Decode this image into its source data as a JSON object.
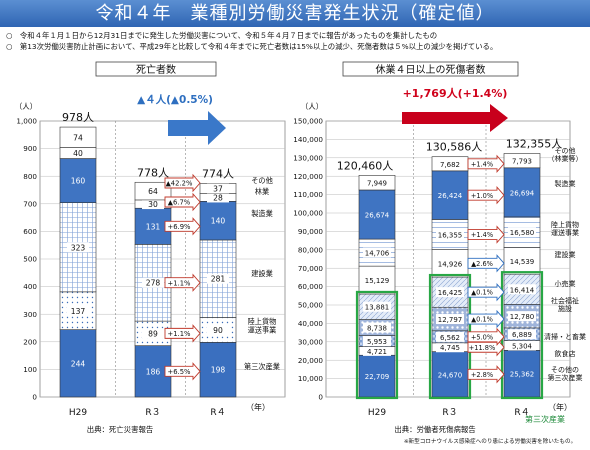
{
  "title": "令和４年　業種別労働災害発生状況（確定値）",
  "notes": [
    "○　令和４年１月１日から12月31日までに発生した労働災害について、令和５年４月７日までに報告があったものを集計したもの",
    "○　第13次労働災害防止計画において、平成29年と比較して令和４年までに死亡者数は15%以上の減少、死傷者数は５%以上の減少を掲げている。"
  ],
  "year_unit": "（年）",
  "chart_data": [
    {
      "type": "bar",
      "stacked": true,
      "title": "死亡者数",
      "ylabel": "（人）",
      "ylim": [
        0,
        1000
      ],
      "yticks": [
        "0",
        "100",
        "200",
        "300",
        "400",
        "500",
        "600",
        "700",
        "800",
        "900",
        "1,000"
      ],
      "categories": [
        "H29",
        "R３",
        "R４"
      ],
      "totals": [
        "978人",
        "778人",
        "774人"
      ],
      "change_label": "▲４人(▲0.5%)",
      "source": "出典：死亡災害報告",
      "series": [
        {
          "name": "第三次産業",
          "values": [
            244,
            186,
            198
          ],
          "labels": [
            "244",
            "186",
            "198"
          ],
          "change": "+6.5%"
        },
        {
          "name": "陸上貨物\n運送事業",
          "values": [
            137,
            89,
            90
          ],
          "labels": [
            "137",
            "89",
            "90"
          ],
          "change": "+1.1%"
        },
        {
          "name": "建設業",
          "values": [
            323,
            278,
            281
          ],
          "labels": [
            "323",
            "278",
            "281"
          ],
          "change": "+1.1%"
        },
        {
          "name": "製造業",
          "values": [
            160,
            131,
            140
          ],
          "labels": [
            "160",
            "131",
            "140"
          ],
          "change": "+6.9%"
        },
        {
          "name": "林業",
          "values": [
            40,
            30,
            28
          ],
          "labels": [
            "40",
            "30",
            "28"
          ],
          "change": "▲6.7%"
        },
        {
          "name": "その他",
          "values": [
            74,
            64,
            37
          ],
          "labels": [
            "74",
            "64",
            "37"
          ],
          "change": "▲42.2%"
        }
      ]
    },
    {
      "type": "bar",
      "stacked": true,
      "title": "休業４日以上の死傷者数",
      "ylabel": "（人）",
      "ylim": [
        0,
        150000
      ],
      "yticks": [
        "0",
        "10,000",
        "20,000",
        "30,000",
        "40,000",
        "50,000",
        "60,000",
        "70,000",
        "80,000",
        "90,000",
        "100,000",
        "110,000",
        "120,000",
        "130,000",
        "140,000",
        "150,000"
      ],
      "categories": [
        "H29",
        "R３",
        "R４"
      ],
      "totals": [
        "120,460人",
        "130,586人",
        "132,355人"
      ],
      "change_label": "+1,769人(+1.4%)",
      "source": "出典：労働者死傷病報告",
      "footnote": "※新型コロナウイルス感染症へのり患による労働災害を除いたもの。",
      "third_sector_label": "第三次産業",
      "series": [
        {
          "name": "その他の\n第三次産業",
          "values": [
            22709,
            24670,
            25362
          ],
          "labels": [
            "22,709",
            "24,670",
            "25,362"
          ],
          "change": "+2.8%",
          "third": true
        },
        {
          "name": "飲食店",
          "values": [
            4721,
            4745,
            5304
          ],
          "labels": [
            "4,721",
            "4,745",
            "5,304"
          ],
          "change": "+11.8%",
          "third": true
        },
        {
          "name": "清掃・と畜業",
          "values": [
            5953,
            6562,
            6889
          ],
          "labels": [
            "5,953",
            "6,562",
            "6,889"
          ],
          "change": "+5.0%",
          "third": true
        },
        {
          "name": "社会福祉\n施設",
          "values": [
            8738,
            12797,
            12780
          ],
          "labels": [
            "8,738",
            "12,797",
            "12,780"
          ],
          "change": "▲0.1%",
          "third": true
        },
        {
          "name": "小売業",
          "values": [
            13881,
            16425,
            16414
          ],
          "labels": [
            "13,881",
            "16,425",
            "16,414"
          ],
          "change": "▲0.1%",
          "third": true
        },
        {
          "name": "建設業",
          "values": [
            15129,
            14926,
            14539
          ],
          "labels": [
            "15,129",
            "14,926",
            "14,539"
          ],
          "change": "▲2.6%"
        },
        {
          "name": "陸上貨物\n運送事業",
          "values": [
            14706,
            16355,
            16580
          ],
          "labels": [
            "14,706",
            "16,355",
            "16,580"
          ],
          "change": "+1.4%"
        },
        {
          "name": "製造業",
          "values": [
            26674,
            26424,
            26694
          ],
          "labels": [
            "26,674",
            "26,424",
            "26,694"
          ],
          "change": "+1.0%"
        },
        {
          "name": "その他\n（林業等）",
          "values": [
            7949,
            7682,
            7793
          ],
          "labels": [
            "7,949",
            "7,682",
            "7,793"
          ],
          "change": "+1.4%"
        }
      ]
    }
  ]
}
